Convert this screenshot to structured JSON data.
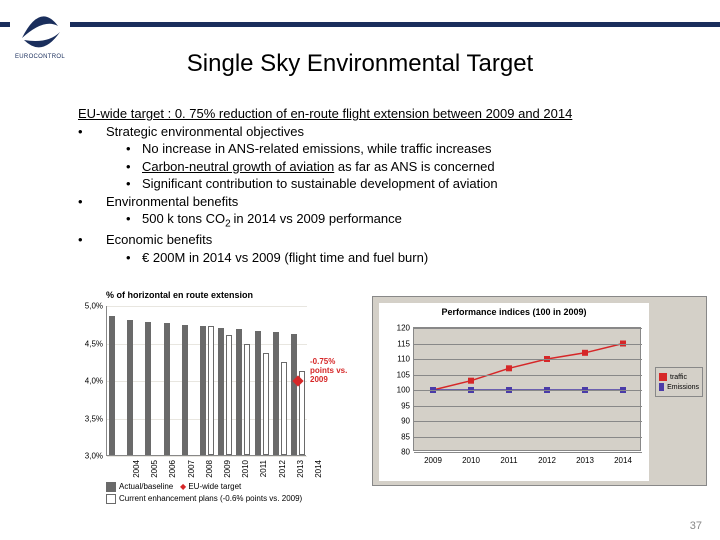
{
  "logo_text": "EUROCONTROL",
  "title": "Single Sky Environmental Target",
  "target_line": "EU-wide target : 0. 75% reduction of en-route flight extension between 2009 and 2014",
  "b1": "Strategic environmental objectives",
  "b1a": "No increase in ANS-related emissions, while traffic increases",
  "b1b_pre": "Carbon-neutral growth of aviation",
  "b1b_post": " as far as ANS is concerned",
  "b1c": "Significant contribution to sustainable development of aviation",
  "b2": "Environmental benefits",
  "b2a_pre": "500 k tons CO",
  "b2a_sub": "2 ",
  "b2a_post": "in 2014 vs 2009 performance",
  "b3": "Economic benefits",
  "b3a": "€ 200M in 2014 vs 2009 (flight time and fuel burn)",
  "page_number": "37",
  "left_chart": {
    "title": "% of horizontal en route extension",
    "ylim": [
      3.0,
      5.0
    ],
    "ytick_step": 0.5,
    "yticks": [
      "3,0%",
      "3,5%",
      "4,0%",
      "4,5%",
      "5,0%"
    ],
    "years": [
      "2004",
      "2005",
      "2006",
      "2007",
      "2008",
      "2009",
      "2010",
      "2011",
      "2012",
      "2013",
      "2014"
    ],
    "baseline": [
      4.85,
      4.8,
      4.78,
      4.76,
      4.74,
      4.72,
      4.7,
      4.68,
      4.66,
      4.64,
      4.62
    ],
    "plan": [
      null,
      null,
      null,
      null,
      null,
      4.72,
      4.6,
      4.48,
      4.36,
      4.24,
      4.12
    ],
    "target_value": 4.0,
    "target_year_index": 10,
    "annotation": "-0.75% points vs. 2009",
    "colors": {
      "baseline": "#6a6a6a",
      "plan_border": "#6a6a6a",
      "target": "#d62728",
      "grid": "#e8e6e0"
    },
    "legend": {
      "baseline": "Actual/baseline",
      "target": "EU-wide target",
      "plan": "Current enhancement plans (-0.6% points vs. 2009)"
    }
  },
  "right_chart": {
    "title": "Performance indices (100 in 2009)",
    "ylim": [
      80,
      120
    ],
    "ytick_step": 5,
    "yticks": [
      "80",
      "85",
      "90",
      "95",
      "100",
      "105",
      "110",
      "115",
      "120"
    ],
    "years": [
      "2009",
      "2010",
      "2011",
      "2012",
      "2013",
      "2014"
    ],
    "traffic": [
      100,
      103,
      107,
      110,
      112,
      115
    ],
    "emissions": [
      100,
      100,
      100,
      100,
      100,
      100
    ],
    "colors": {
      "traffic": "#d62728",
      "emissions": "#4a3ba8",
      "plot_bg": "#d4d0c8",
      "panel_bg": "#d4d0c8",
      "grid": "#888888"
    },
    "legend": {
      "traffic": "traffic",
      "emissions": "Emissions"
    }
  }
}
